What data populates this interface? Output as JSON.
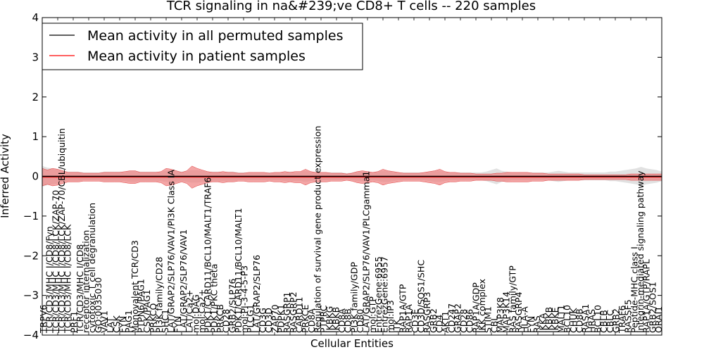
{
  "chart_data": {
    "type": "line",
    "title": "TCR signaling in na&#239;ve CD8+ T cells -- 220 samples",
    "xlabel": "Cellular Entities",
    "ylabel": "Inferred Activity",
    "ylim": [
      -4,
      4
    ],
    "yticks": [
      -4,
      -3,
      -2,
      -1,
      0,
      1,
      2,
      3,
      4
    ],
    "grid": false,
    "legend_position": "top-left",
    "series": [
      {
        "name": "Mean activity in all permuted samples",
        "color": "#000000",
        "band_color": "#c8c8c8",
        "mean": 0.0,
        "band_halfwidth": 0.12
      },
      {
        "name": "Mean activity in patient samples",
        "color": "#ff0000",
        "band_color": "#f08080",
        "mean": -0.02,
        "band_halfwidth": 0.12
      }
    ],
    "band_profile_red": [
      0.22,
      0.18,
      0.22,
      0.2,
      0.16,
      0.12,
      0.12,
      0.12,
      0.1,
      0.1,
      0.1,
      0.1,
      0.12,
      0.12,
      0.12,
      0.12,
      0.14,
      0.16,
      0.16,
      0.12,
      0.12,
      0.12,
      0.12,
      0.14,
      0.22,
      0.2,
      0.16,
      0.12,
      0.16,
      0.28,
      0.22,
      0.18,
      0.14,
      0.12,
      0.12,
      0.14,
      0.12,
      0.12,
      0.1,
      0.1,
      0.12,
      0.12,
      0.12,
      0.12,
      0.1,
      0.12,
      0.12,
      0.14,
      0.12,
      0.14,
      0.14,
      0.2,
      0.14,
      0.12,
      0.12,
      0.12,
      0.1,
      0.1,
      0.1,
      0.08,
      0.1,
      0.14,
      0.16,
      0.14,
      0.12,
      0.14,
      0.2,
      0.16,
      0.14,
      0.12,
      0.1,
      0.1,
      0.1,
      0.1,
      0.12,
      0.14,
      0.16,
      0.2,
      0.14,
      0.12,
      0.12,
      0.1,
      0.1,
      0.1,
      0.08,
      0.08,
      0.08,
      0.08,
      0.1,
      0.1,
      0.12,
      0.12,
      0.12,
      0.12,
      0.12,
      0.1,
      0.1,
      0.1,
      0.08,
      0.08,
      0.08,
      0.08,
      0.08,
      0.08,
      0.08,
      0.06,
      0.06,
      0.06,
      0.06,
      0.06,
      0.06,
      0.06,
      0.06,
      0.06,
      0.08,
      0.08,
      0.08,
      0.08,
      0.08,
      0.08,
      0.08
    ],
    "band_profile_gray": [
      0.26,
      0.22,
      0.2,
      0.18,
      0.14,
      0.12,
      0.12,
      0.12,
      0.1,
      0.1,
      0.1,
      0.1,
      0.12,
      0.12,
      0.12,
      0.12,
      0.12,
      0.14,
      0.14,
      0.12,
      0.12,
      0.12,
      0.12,
      0.12,
      0.14,
      0.14,
      0.14,
      0.12,
      0.14,
      0.16,
      0.16,
      0.14,
      0.12,
      0.12,
      0.12,
      0.12,
      0.12,
      0.12,
      0.1,
      0.1,
      0.1,
      0.1,
      0.1,
      0.1,
      0.1,
      0.1,
      0.1,
      0.12,
      0.12,
      0.12,
      0.12,
      0.14,
      0.12,
      0.1,
      0.1,
      0.1,
      0.1,
      0.1,
      0.1,
      0.08,
      0.1,
      0.12,
      0.12,
      0.12,
      0.1,
      0.12,
      0.14,
      0.14,
      0.12,
      0.1,
      0.1,
      0.1,
      0.1,
      0.1,
      0.1,
      0.12,
      0.14,
      0.14,
      0.12,
      0.1,
      0.1,
      0.1,
      0.1,
      0.1,
      0.1,
      0.1,
      0.12,
      0.16,
      0.2,
      0.14,
      0.12,
      0.1,
      0.1,
      0.1,
      0.1,
      0.1,
      0.1,
      0.1,
      0.1,
      0.12,
      0.14,
      0.12,
      0.1,
      0.1,
      0.1,
      0.1,
      0.1,
      0.1,
      0.1,
      0.1,
      0.12,
      0.12,
      0.14,
      0.16,
      0.18,
      0.2,
      0.24,
      0.2,
      0.18,
      0.16,
      0.12
    ],
    "categories": [
      "TRPV6",
      "TCR/CD3/MHC I/CD8/Fyn",
      "TCR/CD3/MHC I/CD8/LCK/ZAP-70",
      "TCR/CD3/MHC I/CD8/LCK/ZAP-70/CBL/ubiquitin",
      "TCR/CD3/MHC I/CD8/LCK",
      "PRF1",
      "TCR/CD3/MHC I/CD8",
      "receptor internalization",
      "cytotoxic T cell degranulation",
      "GO:0035030",
      "VAV1",
      "LAT",
      "CSK",
      "FYN",
      "PAG1",
      "Monovalent TCR/CD3",
      "PTPN6/PAG1",
      "CSK/PAG1",
      "PRKCQ",
      "PI3K family/CD28",
      "SHC1",
      "LAT/GRAP2/SLP76/VAV1/PI3K Class IA",
      "FYN",
      "LAT/GRAP2/SLP76/VAV1",
      "LAT/Ca2+",
      "mol:DAG",
      "mol:Ca2+",
      "PDK1/CARD11/BCL10/MALT1/TRAF6",
      "PDK1/PKC theta",
      "PRKCB",
      "CD28",
      "GRB2/SLP76",
      "PDK1/CARD11/BCL10/MALT1",
      "mol:PI-3-4-5-P3",
      "PLCG1",
      "LAT/GRAP2/SLP76",
      "CD3G",
      "CD3D",
      "ZAP70",
      "PDPK1",
      "RASGRP1",
      "RASGRP2",
      "CARD11",
      "PRKCE",
      "CD8A",
      "Regulation of survival gene product expression",
      "PTPRC",
      "IKBKG",
      "IKBKB",
      "CD8A",
      "CD8B",
      "PI3K family/GDP",
      "CD80",
      "LAT/GRAP2/SLP76/VAV1/PLCgamma1",
      "mol:GTP",
      "EntrezGene:6955",
      "EntrezGene:6957",
      "mol:IP3",
      "ITK",
      "RAP1A/GTP",
      "RAP1A",
      "CD3E",
      "CD3D/SOS1/SHC",
      "RASGRP3",
      "GRB2",
      "CD4",
      "AKT1",
      "CD247",
      "GRAP2",
      "CD28",
      "CD86",
      "RAP1A/GDP",
      "IKK complex",
      "STIM1",
      "CBL",
      "MAP3K8",
      "MAP3K14",
      "RAS family/GTP",
      "RASGRP4",
      "HLA-A",
      "FYN",
      "RAS",
      "IKKA",
      "IKBKB",
      "IKBKE",
      "MALT1",
      "BCL10",
      "CHUK",
      "CD8B",
      "RASA1",
      "HRAS",
      "BCL10",
      "CBLB",
      "CBLC",
      "GRB2",
      "TRAF6",
      "RASSF5",
      "Peptide-MHC class I",
      "Integrin-mediated signaling pathway",
      "RAP1A/GTP/RAPL",
      "GRB2/SOS1",
      "ORAI1"
    ]
  }
}
